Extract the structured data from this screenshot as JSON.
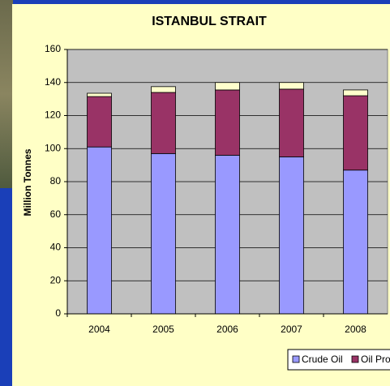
{
  "chart_data": {
    "type": "stacked_bar",
    "title": "ISTANBUL STRAIT",
    "y_label": "Million Tonnes",
    "categories": [
      "2004",
      "2005",
      "2006",
      "2007",
      "2008"
    ],
    "series": [
      {
        "name": "Crude Oil",
        "color": "#9999ff",
        "values": [
          101,
          97,
          96,
          95,
          87
        ]
      },
      {
        "name": "Oil Pro",
        "color": "#993366",
        "values": [
          30.5,
          37,
          39.5,
          41,
          45
        ]
      },
      {
        "color": "#ffffcc",
        "values": [
          2,
          3.5,
          4.5,
          4,
          3.5
        ]
      }
    ],
    "ylim": [
      0,
      160
    ],
    "yticks": [
      0,
      20,
      40,
      60,
      80,
      100,
      120,
      140,
      160
    ],
    "grid": true,
    "legend": "bottom-right"
  }
}
